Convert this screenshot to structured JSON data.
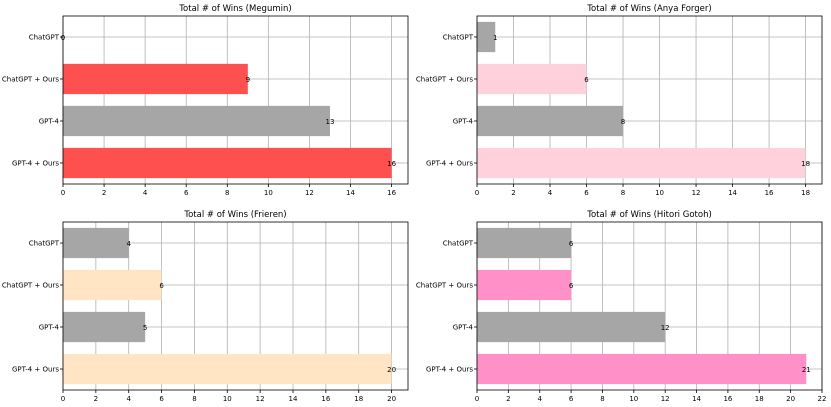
{
  "chart_data": [
    {
      "type": "bar",
      "orientation": "horizontal",
      "title": "Total # of Wins (Megumin)",
      "categories": [
        "ChatGPT",
        "ChatGPT + Ours",
        "GPT-4",
        "GPT-4 + Ours"
      ],
      "values": [
        0,
        9,
        13,
        16
      ],
      "colors": [
        "#a6a6a6",
        "#ff5050",
        "#a6a6a6",
        "#ff5050"
      ],
      "xlim": [
        0,
        16.8
      ],
      "xticks": [
        0,
        2,
        4,
        6,
        8,
        10,
        12,
        14,
        16
      ],
      "grid": true,
      "xlabel": "",
      "ylabel": ""
    },
    {
      "type": "bar",
      "orientation": "horizontal",
      "title": "Total # of Wins (Anya Forger)",
      "categories": [
        "ChatGPT",
        "ChatGPT + Ours",
        "GPT-4",
        "GPT-4 + Ours"
      ],
      "values": [
        1,
        6,
        8,
        18
      ],
      "colors": [
        "#a6a6a6",
        "#ffd1dc",
        "#a6a6a6",
        "#ffd1dc"
      ],
      "xlim": [
        0,
        18.9
      ],
      "xticks": [
        0,
        2,
        4,
        6,
        8,
        10,
        12,
        14,
        16,
        18
      ],
      "grid": true,
      "xlabel": "",
      "ylabel": ""
    },
    {
      "type": "bar",
      "orientation": "horizontal",
      "title": "Total # of Wins (Frieren)",
      "categories": [
        "ChatGPT",
        "ChatGPT + Ours",
        "GPT-4",
        "GPT-4 + Ours"
      ],
      "values": [
        4,
        6,
        5,
        20
      ],
      "colors": [
        "#a6a6a6",
        "#ffe5c4",
        "#a6a6a6",
        "#ffe5c4"
      ],
      "xlim": [
        0,
        21
      ],
      "xticks": [
        0,
        2,
        4,
        6,
        8,
        10,
        12,
        14,
        16,
        18,
        20
      ],
      "grid": true,
      "xlabel": "",
      "ylabel": ""
    },
    {
      "type": "bar",
      "orientation": "horizontal",
      "title": "Total # of Wins (Hitori Gotoh)",
      "categories": [
        "ChatGPT",
        "ChatGPT + Ours",
        "GPT-4",
        "GPT-4 + Ours"
      ],
      "values": [
        6,
        6,
        12,
        21
      ],
      "colors": [
        "#a6a6a6",
        "#ff91c8",
        "#a6a6a6",
        "#ff91c8"
      ],
      "xlim": [
        0,
        22
      ],
      "xticks": [
        0,
        2,
        4,
        6,
        8,
        10,
        12,
        14,
        16,
        18,
        20,
        22
      ],
      "grid": true,
      "xlabel": "",
      "ylabel": ""
    }
  ]
}
